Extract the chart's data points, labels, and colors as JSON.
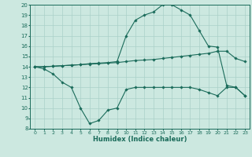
{
  "xlabel": "Humidex (Indice chaleur)",
  "bg_color": "#cce8e0",
  "line_color": "#1a6b5a",
  "grid_color": "#aad0c8",
  "xlim": [
    -0.5,
    23.5
  ],
  "ylim": [
    8,
    20
  ],
  "xticks": [
    0,
    1,
    2,
    3,
    4,
    5,
    6,
    7,
    8,
    9,
    10,
    11,
    12,
    13,
    14,
    15,
    16,
    17,
    18,
    19,
    20,
    21,
    22,
    23
  ],
  "yticks": [
    8,
    9,
    10,
    11,
    12,
    13,
    14,
    15,
    16,
    17,
    18,
    19,
    20
  ],
  "series1_x": [
    0,
    1,
    2,
    3,
    4,
    5,
    6,
    7,
    8,
    9,
    10,
    11,
    12,
    13,
    14,
    15,
    16,
    17,
    18,
    19,
    20,
    21,
    22,
    23
  ],
  "series1_y": [
    14.0,
    13.8,
    13.3,
    12.5,
    12.0,
    10.0,
    8.5,
    8.8,
    9.8,
    10.0,
    11.8,
    12.0,
    12.0,
    12.0,
    12.0,
    12.0,
    12.0,
    12.0,
    11.8,
    11.5,
    11.2,
    12.0,
    12.0,
    11.2
  ],
  "series2_x": [
    0,
    1,
    2,
    3,
    4,
    5,
    6,
    7,
    8,
    9,
    10,
    11,
    12,
    13,
    14,
    15,
    16,
    17,
    18,
    19,
    20,
    21,
    22,
    23
  ],
  "series2_y": [
    14.0,
    14.0,
    14.05,
    14.1,
    14.15,
    14.2,
    14.25,
    14.3,
    14.35,
    14.4,
    14.5,
    14.6,
    14.65,
    14.7,
    14.8,
    14.9,
    15.0,
    15.1,
    15.2,
    15.3,
    15.5,
    15.5,
    14.8,
    14.5
  ],
  "series3_x": [
    0,
    1,
    2,
    3,
    4,
    5,
    6,
    7,
    8,
    9,
    10,
    11,
    12,
    13,
    14,
    15,
    16,
    17,
    18,
    19,
    20,
    21,
    22,
    23
  ],
  "series3_y": [
    14.0,
    14.0,
    14.05,
    14.1,
    14.15,
    14.2,
    14.3,
    14.35,
    14.4,
    14.5,
    17.0,
    18.5,
    19.0,
    19.3,
    20.0,
    20.0,
    19.5,
    19.0,
    17.5,
    16.0,
    15.9,
    12.2,
    12.0,
    11.2
  ]
}
